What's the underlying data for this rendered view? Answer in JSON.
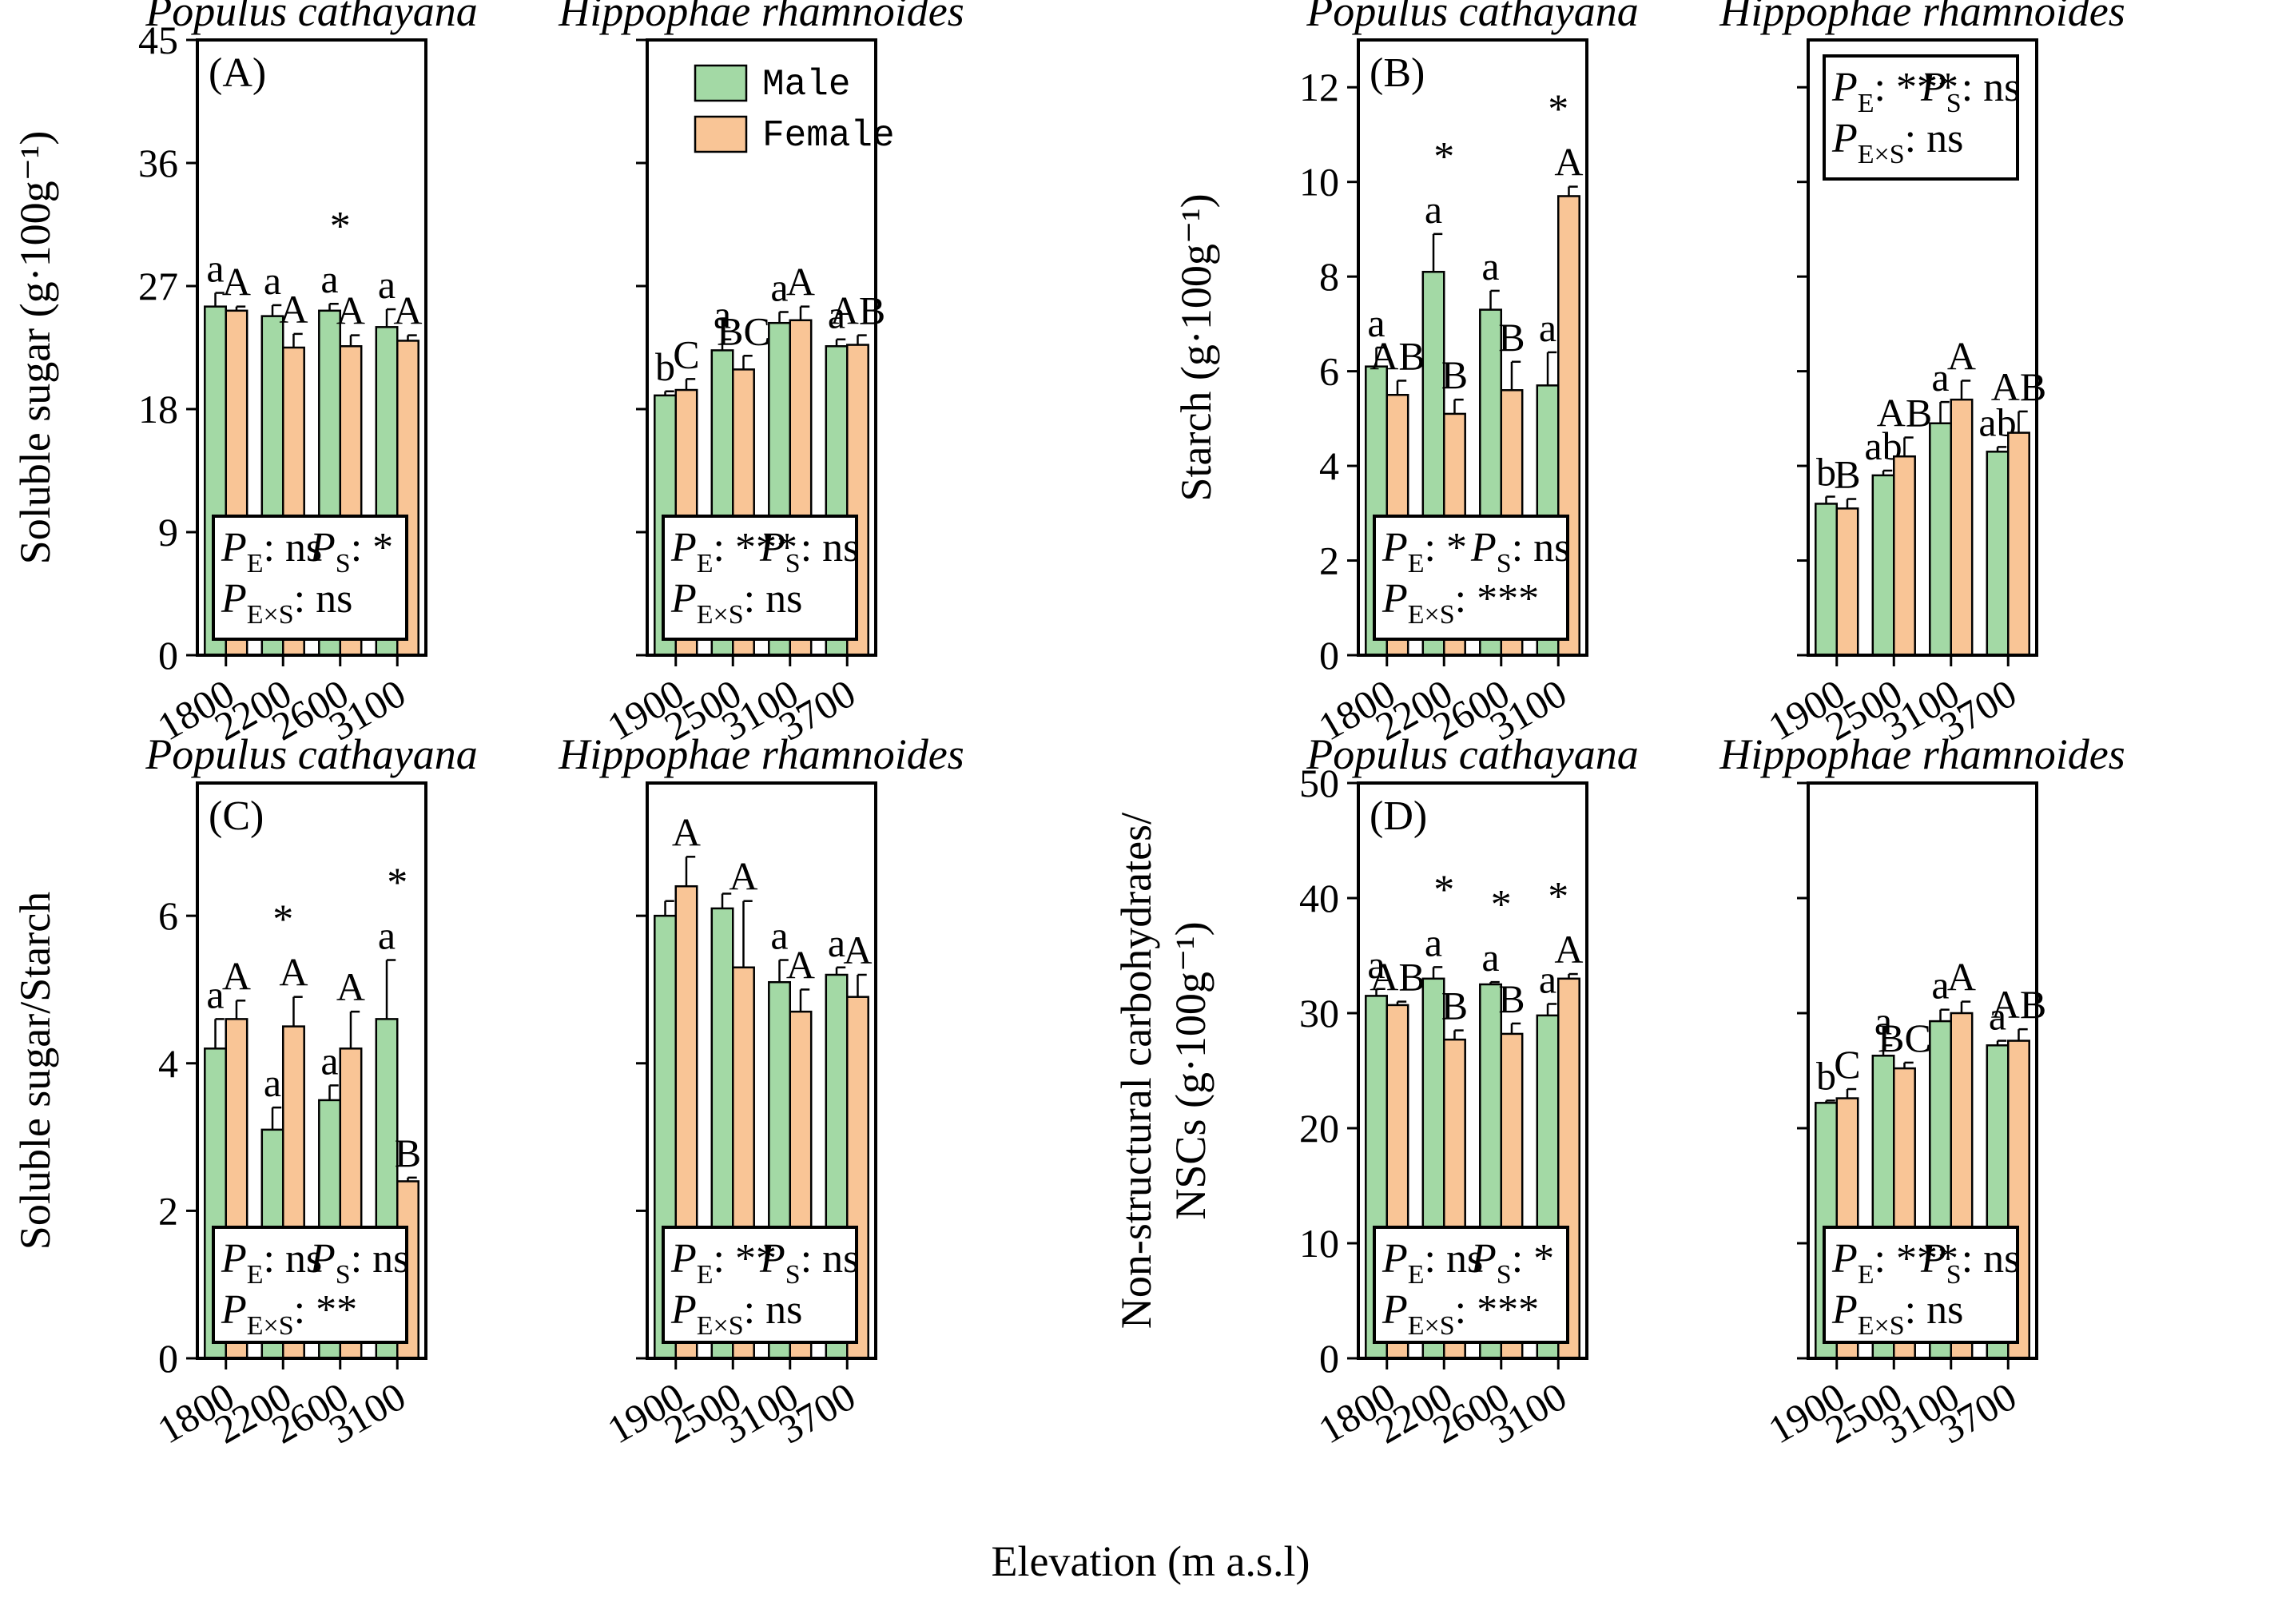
{
  "figure": {
    "xlabel": "Elevation (m a.s.l)",
    "colors": {
      "male": "#a3d9a5",
      "female": "#f9c596",
      "stroke": "#000000"
    },
    "legend": {
      "male": "Male",
      "female": "Female"
    }
  },
  "chart_data": [
    {
      "type": "bar",
      "panel_label": "(A)",
      "ylabel": "Soluble sugar (g·100g⁻¹)",
      "ylim": [
        0,
        45
      ],
      "yticks": [
        0,
        9,
        18,
        27,
        36,
        45
      ],
      "species": [
        {
          "name": "Populus cathayana",
          "categories": [
            "1800",
            "2200",
            "2600",
            "3100"
          ],
          "series": [
            {
              "name": "Male",
              "values": [
                25.5,
                24.8,
                25.2,
                24.0
              ],
              "errors": [
                1.0,
                0.8,
                0.5,
                1.3
              ],
              "letters": [
                "a",
                "a",
                "a",
                "a"
              ]
            },
            {
              "name": "Female",
              "values": [
                25.2,
                22.5,
                22.6,
                23.0
              ],
              "errors": [
                0.3,
                1.0,
                0.8,
                0.4
              ],
              "letters": [
                "A",
                "A",
                "A",
                "A"
              ]
            }
          ],
          "stars": [
            "",
            "",
            "*",
            ""
          ],
          "stats": {
            "pe": "ns",
            "ps": "*",
            "pexs": "ns"
          }
        },
        {
          "name": "Hippophae rhamnoides",
          "categories": [
            "1900",
            "2500",
            "3100",
            "3700"
          ],
          "series": [
            {
              "name": "Male",
              "values": [
                19.0,
                22.3,
                24.3,
                22.6
              ],
              "errors": [
                0.3,
                0.8,
                0.8,
                0.5
              ],
              "letters": [
                "b",
                "a",
                "a",
                "a"
              ]
            },
            {
              "name": "Female",
              "values": [
                19.4,
                20.9,
                24.5,
                22.7
              ],
              "errors": [
                0.8,
                1.0,
                1.0,
                0.7
              ],
              "letters": [
                "C",
                "BC",
                "A",
                "AB"
              ]
            }
          ],
          "stars": [
            "",
            "",
            "",
            ""
          ],
          "stats": {
            "pe": "***",
            "ps": "ns",
            "pexs": "ns"
          }
        }
      ]
    },
    {
      "type": "bar",
      "panel_label": "(B)",
      "ylabel": "Starch (g·100g⁻¹)",
      "ylim": [
        0,
        13
      ],
      "yticks": [
        0,
        2,
        4,
        6,
        8,
        10,
        12
      ],
      "species": [
        {
          "name": "Populus cathayana",
          "categories": [
            "1800",
            "2200",
            "2600",
            "3100"
          ],
          "series": [
            {
              "name": "Male",
              "values": [
                6.1,
                8.1,
                7.3,
                5.7
              ],
              "errors": [
                0.4,
                0.8,
                0.4,
                0.7
              ],
              "letters": [
                "a",
                "a",
                "a",
                "a"
              ]
            },
            {
              "name": "Female",
              "values": [
                5.5,
                5.1,
                5.6,
                9.7
              ],
              "errors": [
                0.3,
                0.3,
                0.6,
                0.2
              ],
              "letters": [
                "AB",
                "B",
                "B",
                "A"
              ]
            }
          ],
          "stars": [
            "",
            "*",
            "",
            "*"
          ],
          "stats": {
            "pe": "*",
            "ps": "ns",
            "pexs": "***"
          }
        },
        {
          "name": "Hippophae rhamnoides",
          "categories": [
            "1900",
            "2500",
            "3100",
            "3700"
          ],
          "series": [
            {
              "name": "Male",
              "values": [
                3.2,
                3.8,
                4.9,
                4.3
              ],
              "errors": [
                0.15,
                0.1,
                0.45,
                0.1
              ],
              "letters": [
                "b",
                "ab",
                "a",
                "ab"
              ]
            },
            {
              "name": "Female",
              "values": [
                3.1,
                4.2,
                5.4,
                4.7
              ],
              "errors": [
                0.2,
                0.4,
                0.4,
                0.45
              ],
              "letters": [
                "B",
                "AB",
                "A",
                "AB"
              ]
            }
          ],
          "stars": [
            "",
            "",
            "",
            ""
          ],
          "stats": {
            "pe": "***",
            "ps": "ns",
            "pexs": "ns"
          }
        }
      ]
    },
    {
      "type": "bar",
      "panel_label": "(C)",
      "ylabel": "Soluble sugar/Starch",
      "ylim": [
        0,
        7.8
      ],
      "yticks": [
        0,
        2,
        4,
        6
      ],
      "species": [
        {
          "name": "Populus cathayana",
          "categories": [
            "1800",
            "2200",
            "2600",
            "3100"
          ],
          "series": [
            {
              "name": "Male",
              "values": [
                4.2,
                3.1,
                3.5,
                4.6
              ],
              "errors": [
                0.4,
                0.3,
                0.2,
                0.8
              ],
              "letters": [
                "a",
                "a",
                "a",
                "a"
              ]
            },
            {
              "name": "Female",
              "values": [
                4.6,
                4.5,
                4.2,
                2.4
              ],
              "errors": [
                0.25,
                0.4,
                0.5,
                0.05
              ],
              "letters": [
                "A",
                "A",
                "A",
                "B"
              ]
            }
          ],
          "stars": [
            "",
            "*",
            "",
            "*"
          ],
          "stats": {
            "pe": "ns",
            "ps": "ns",
            "pexs": "**"
          }
        },
        {
          "name": "Hippophae rhamnoides",
          "categories": [
            "1900",
            "2500",
            "3100",
            "3700"
          ],
          "series": [
            {
              "name": "Male",
              "values": [
                6.0,
                6.1,
                5.1,
                5.2
              ],
              "errors": [
                0.2,
                0.2,
                0.3,
                0.1
              ],
              "letters": [
                "",
                "",
                "a",
                "a"
              ]
            },
            {
              "name": "Female",
              "values": [
                6.4,
                5.3,
                4.7,
                4.9
              ],
              "errors": [
                0.4,
                0.9,
                0.3,
                0.3
              ],
              "letters": [
                "A",
                "A",
                "A",
                "A"
              ]
            }
          ],
          "stars": [
            "",
            "",
            "",
            ""
          ],
          "stats": {
            "pe": "**",
            "ps": "ns",
            "pexs": "ns"
          }
        }
      ]
    },
    {
      "type": "bar",
      "panel_label": "(D)",
      "ylabel": "Non-structural carbohydrates/ NSCs (g·100g⁻¹)",
      "ylabel_lines": [
        "Non-structural carbohydrates/",
        "NSCs (g·100g⁻¹)"
      ],
      "ylim": [
        0,
        50
      ],
      "yticks": [
        0,
        10,
        20,
        30,
        40,
        50
      ],
      "species": [
        {
          "name": "Populus cathayana",
          "categories": [
            "1800",
            "2200",
            "2600",
            "3100"
          ],
          "series": [
            {
              "name": "Male",
              "values": [
                31.5,
                33.0,
                32.5,
                29.8
              ],
              "errors": [
                0.6,
                1.0,
                0.2,
                1.0
              ],
              "letters": [
                "a",
                "a",
                "a",
                "a"
              ]
            },
            {
              "name": "Female",
              "values": [
                30.7,
                27.7,
                28.2,
                33.0
              ],
              "errors": [
                0.3,
                0.8,
                0.9,
                0.4
              ],
              "letters": [
                "AB",
                "B",
                "B",
                "A"
              ]
            }
          ],
          "stars": [
            "",
            "*",
            "*",
            "*"
          ],
          "stats": {
            "pe": "ns",
            "ps": "*",
            "pexs": "***"
          }
        },
        {
          "name": "Hippophae rhamnoides",
          "categories": [
            "1900",
            "2500",
            "3100",
            "3700"
          ],
          "series": [
            {
              "name": "Male",
              "values": [
                22.2,
                26.3,
                29.3,
                27.2
              ],
              "errors": [
                0.2,
                0.9,
                1.0,
                0.4
              ],
              "letters": [
                "b",
                "a",
                "a",
                "a"
              ]
            },
            {
              "name": "Female",
              "values": [
                22.6,
                25.2,
                30.0,
                27.6
              ],
              "errors": [
                0.8,
                0.5,
                1.0,
                1.0
              ],
              "letters": [
                "C",
                "BC",
                "A",
                "AB"
              ]
            }
          ],
          "stars": [
            "",
            "",
            "",
            ""
          ],
          "stats": {
            "pe": "***",
            "ps": "ns",
            "pexs": "ns"
          }
        }
      ]
    }
  ]
}
